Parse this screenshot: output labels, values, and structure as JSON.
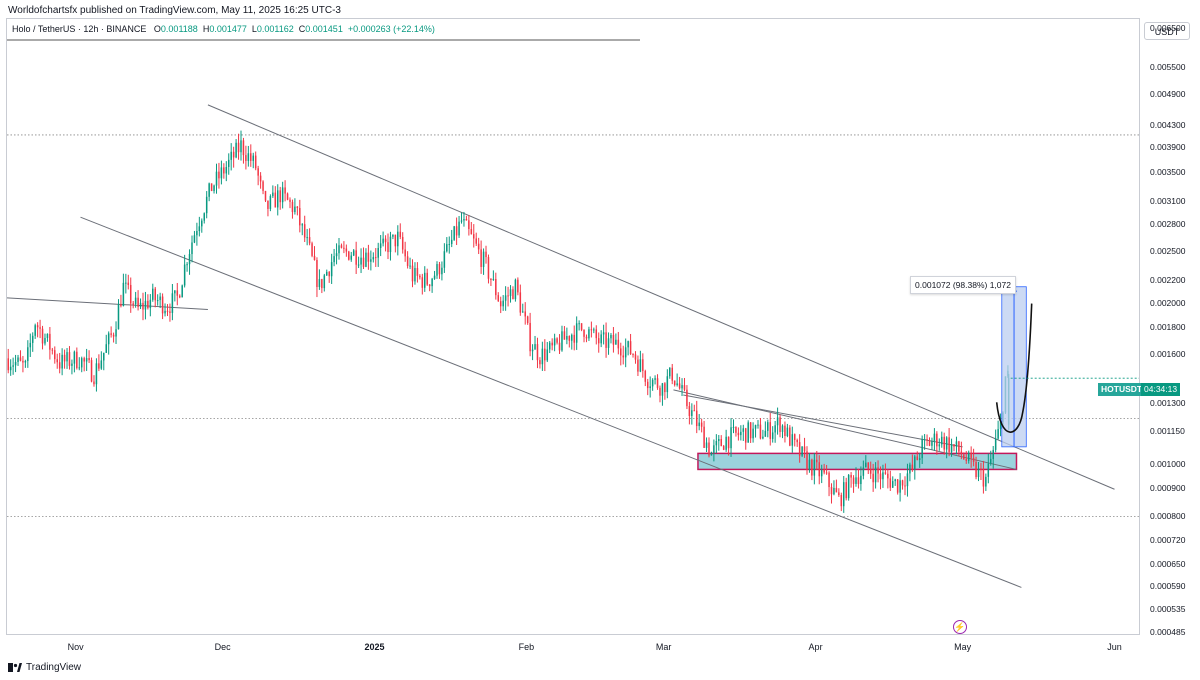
{
  "header": {
    "published_by": "Worldofchartsfx published on TradingView.com, May 11, 2025 16:25 UTC-3"
  },
  "legend": {
    "symbol": "Holo / TetherUS · 12h · BINANCE",
    "open_label": "O",
    "open": "0.001188",
    "high_label": "H",
    "high": "0.001477",
    "low_label": "L",
    "low": "0.001162",
    "close_label": "C",
    "close": "0.001451",
    "change": "+0.000263 (+22.14%)"
  },
  "currency_button": "USDT",
  "price_axis": {
    "labels": [
      "0.006500",
      "0.005500",
      "0.004900",
      "0.004300",
      "0.003900",
      "0.003500",
      "0.003100",
      "0.002800",
      "0.002500",
      "0.002200",
      "0.002000",
      "0.001800",
      "0.001600",
      "0.001300",
      "0.001150",
      "0.001000",
      "0.000900",
      "0.000800",
      "0.000720",
      "0.000650",
      "0.000590",
      "0.000535",
      "0.000485"
    ]
  },
  "time_axis": {
    "labels": [
      "Nov",
      "Dec",
      "2025",
      "Feb",
      "Mar",
      "Apr",
      "May",
      "Jun"
    ]
  },
  "measure_label": "0.001072 (98.38%) 1,072",
  "last_price_tag": {
    "symbol": "HOTUSDT",
    "countdown": "04:34:13"
  },
  "brand": "TradingView",
  "colors": {
    "up": "#089981",
    "down": "#f23645",
    "zone_fill": "#9bd3dd",
    "zone_border": "#c2185b",
    "measure_fill": "#bbcdf0",
    "measure_line": "#2962ff",
    "trendline": "#6b6f78"
  },
  "chart_data": {
    "type": "candlestick",
    "symbol": "HOTUSDT",
    "interval": "12h",
    "exchange": "BINANCE",
    "y_scale": "log",
    "ylim": [
      0.000485,
      0.0068
    ],
    "x_range": [
      "2024-10-18",
      "2025-06-06"
    ],
    "last": {
      "open": 0.001188,
      "high": 0.001477,
      "low": 0.001162,
      "close": 0.001451,
      "change": 0.000263,
      "change_pct": 22.14
    },
    "price_path": [
      {
        "date": "2024-10-18",
        "price": 0.00158
      },
      {
        "date": "2024-10-22",
        "price": 0.00152
      },
      {
        "date": "2024-10-24",
        "price": 0.00185
      },
      {
        "date": "2024-10-29",
        "price": 0.00155
      },
      {
        "date": "2024-11-02",
        "price": 0.00158
      },
      {
        "date": "2024-11-05",
        "price": 0.00148
      },
      {
        "date": "2024-11-07",
        "price": 0.00162
      },
      {
        "date": "2024-11-09",
        "price": 0.00178
      },
      {
        "date": "2024-11-11",
        "price": 0.00215
      },
      {
        "date": "2024-11-14",
        "price": 0.00195
      },
      {
        "date": "2024-11-17",
        "price": 0.00205
      },
      {
        "date": "2024-11-20",
        "price": 0.00198
      },
      {
        "date": "2024-11-22",
        "price": 0.00205
      },
      {
        "date": "2024-11-24",
        "price": 0.00245
      },
      {
        "date": "2024-11-26",
        "price": 0.0028
      },
      {
        "date": "2024-11-29",
        "price": 0.0033
      },
      {
        "date": "2024-12-02",
        "price": 0.0036
      },
      {
        "date": "2024-12-05",
        "price": 0.00395
      },
      {
        "date": "2024-12-08",
        "price": 0.0036
      },
      {
        "date": "2024-12-10",
        "price": 0.003
      },
      {
        "date": "2024-12-13",
        "price": 0.0032
      },
      {
        "date": "2024-12-16",
        "price": 0.003
      },
      {
        "date": "2024-12-19",
        "price": 0.0025
      },
      {
        "date": "2024-12-21",
        "price": 0.00215
      },
      {
        "date": "2024-12-24",
        "price": 0.00245
      },
      {
        "date": "2024-12-27",
        "price": 0.0025
      },
      {
        "date": "2024-12-30",
        "price": 0.00245
      },
      {
        "date": "2025-01-02",
        "price": 0.0025
      },
      {
        "date": "2025-01-06",
        "price": 0.00265
      },
      {
        "date": "2025-01-09",
        "price": 0.00225
      },
      {
        "date": "2025-01-12",
        "price": 0.0022
      },
      {
        "date": "2025-01-14",
        "price": 0.0023
      },
      {
        "date": "2025-01-16",
        "price": 0.0025
      },
      {
        "date": "2025-01-19",
        "price": 0.00285
      },
      {
        "date": "2025-01-21",
        "price": 0.00265
      },
      {
        "date": "2025-01-24",
        "price": 0.00235
      },
      {
        "date": "2025-01-27",
        "price": 0.002
      },
      {
        "date": "2025-01-30",
        "price": 0.00215
      },
      {
        "date": "2025-02-02",
        "price": 0.0017
      },
      {
        "date": "2025-02-04",
        "price": 0.0016
      },
      {
        "date": "2025-02-07",
        "price": 0.00165
      },
      {
        "date": "2025-02-10",
        "price": 0.00175
      },
      {
        "date": "2025-02-13",
        "price": 0.0018
      },
      {
        "date": "2025-02-16",
        "price": 0.0017
      },
      {
        "date": "2025-02-20",
        "price": 0.00168
      },
      {
        "date": "2025-02-23",
        "price": 0.00162
      },
      {
        "date": "2025-02-26",
        "price": 0.00145
      },
      {
        "date": "2025-03-01",
        "price": 0.0014
      },
      {
        "date": "2025-03-03",
        "price": 0.00148
      },
      {
        "date": "2025-03-06",
        "price": 0.0013
      },
      {
        "date": "2025-03-09",
        "price": 0.00115
      },
      {
        "date": "2025-03-11",
        "price": 0.00105
      },
      {
        "date": "2025-03-14",
        "price": 0.00112
      },
      {
        "date": "2025-03-18",
        "price": 0.00115
      },
      {
        "date": "2025-03-22",
        "price": 0.00115
      },
      {
        "date": "2025-03-25",
        "price": 0.0012
      },
      {
        "date": "2025-03-28",
        "price": 0.00108
      },
      {
        "date": "2025-03-31",
        "price": 0.001
      },
      {
        "date": "2025-04-03",
        "price": 0.00095
      },
      {
        "date": "2025-04-06",
        "price": 0.00086
      },
      {
        "date": "2025-04-09",
        "price": 0.00095
      },
      {
        "date": "2025-04-12",
        "price": 0.00098
      },
      {
        "date": "2025-04-15",
        "price": 0.00095
      },
      {
        "date": "2025-04-18",
        "price": 0.00092
      },
      {
        "date": "2025-04-21",
        "price": 0.00098
      },
      {
        "date": "2025-04-23",
        "price": 0.00108
      },
      {
        "date": "2025-04-26",
        "price": 0.00112
      },
      {
        "date": "2025-04-28",
        "price": 0.0011
      },
      {
        "date": "2025-05-01",
        "price": 0.00105
      },
      {
        "date": "2025-05-04",
        "price": 0.00097
      },
      {
        "date": "2025-05-06",
        "price": 0.00094
      },
      {
        "date": "2025-05-08",
        "price": 0.0011
      },
      {
        "date": "2025-05-09",
        "price": 0.00118
      },
      {
        "date": "2025-05-10",
        "price": 0.00145
      }
    ],
    "horizontal_levels": [
      0.00413,
      0.00122,
      0.0008
    ],
    "trendlines": [
      {
        "from": {
          "date": "2024-11-28",
          "price": 0.0047
        },
        "to": {
          "date": "2025-06-01",
          "price": 0.0009
        }
      },
      {
        "from": {
          "date": "2024-11-02",
          "price": 0.0029
        },
        "to": {
          "date": "2025-05-13",
          "price": 0.00059
        }
      },
      {
        "from": {
          "date": "2024-10-18",
          "price": 0.00205
        },
        "to": {
          "date": "2024-11-28",
          "price": 0.00195
        }
      },
      {
        "from": {
          "date": "2025-03-03",
          "price": 0.00138
        },
        "to": {
          "date": "2025-05-12",
          "price": 0.00098
        }
      },
      {
        "from": {
          "date": "2025-03-05",
          "price": 0.00135
        },
        "to": {
          "date": "2025-05-01",
          "price": 0.00108
        }
      }
    ],
    "support_zone": {
      "from_date": "2025-03-08",
      "to_date": "2025-05-12",
      "price_top": 0.00105,
      "price_bottom": 0.00098
    },
    "measure": {
      "from_date": "2025-05-09",
      "to_date": "2025-05-14",
      "price_low": 0.00108,
      "price_high": 0.00215,
      "label": "0.001072 (98.38%) 1,072"
    }
  }
}
